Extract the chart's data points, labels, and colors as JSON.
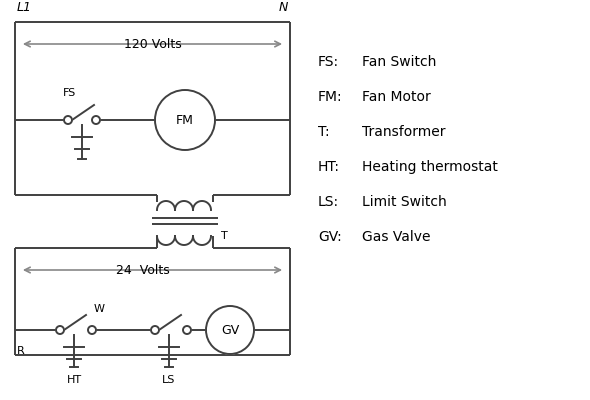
{
  "background_color": "#ffffff",
  "line_color": "#404040",
  "gray_color": "#888888",
  "text_color": "#000000",
  "legend_items": [
    [
      "FS:",
      "Fan Switch"
    ],
    [
      "FM:",
      "Fan Motor"
    ],
    [
      "T:",
      "Transformer"
    ],
    [
      "HT:",
      "Heating thermostat"
    ],
    [
      "LS:",
      "Limit Switch"
    ],
    [
      "GV:",
      "Gas Valve"
    ]
  ]
}
